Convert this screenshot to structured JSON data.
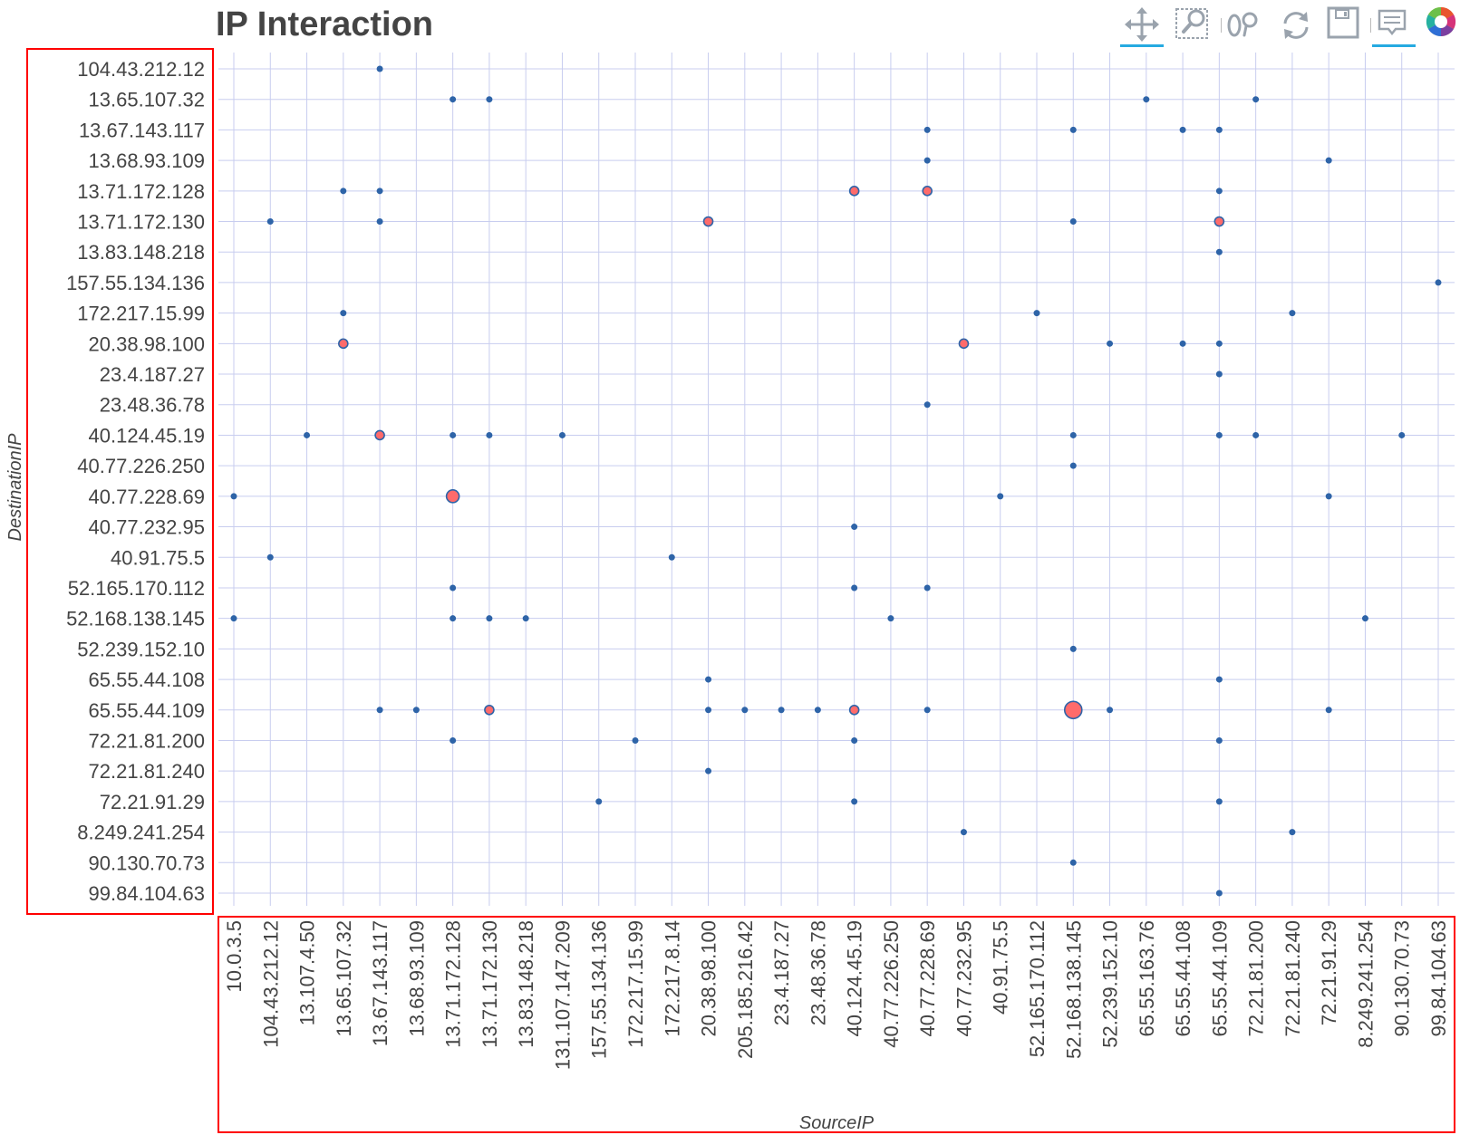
{
  "title": "IP Interaction",
  "toolbar": {
    "tools": [
      {
        "name": "pan-tool",
        "icon": "move-arrows-icon",
        "active": true
      },
      {
        "name": "box-zoom-tool",
        "icon": "box-zoom-icon",
        "active": false
      },
      {
        "name": "wheel-zoom-tool",
        "icon": "wheel-zoom-icon",
        "active": false
      },
      {
        "name": "reset-tool",
        "icon": "reset-icon",
        "active": false
      },
      {
        "name": "save-tool",
        "icon": "save-icon",
        "active": false
      },
      {
        "name": "hover-tool",
        "icon": "hover-tooltip-icon",
        "active": true
      },
      {
        "name": "bokeh-logo",
        "icon": "bokeh-logo-icon",
        "active": false
      }
    ]
  },
  "colors": {
    "grid": "#c8cdef",
    "marker_fill": "#ff6b6b",
    "marker_stroke": "#2e64a8",
    "highlight_box": "#ff0000",
    "text": "#444444",
    "tool_active": "#26aae1"
  },
  "chart_data": {
    "type": "scatter",
    "title": "IP Interaction",
    "xlabel": "SourceIP",
    "ylabel": "DestinationIP",
    "grid": true,
    "x_categories": [
      "10.0.3.5",
      "104.43.212.12",
      "13.107.4.50",
      "13.65.107.32",
      "13.67.143.117",
      "13.68.93.109",
      "13.71.172.128",
      "13.71.172.130",
      "13.83.148.218",
      "131.107.147.209",
      "157.55.134.136",
      "172.217.15.99",
      "172.217.8.14",
      "20.38.98.100",
      "205.185.216.42",
      "23.4.187.27",
      "23.48.36.78",
      "40.124.45.19",
      "40.77.226.250",
      "40.77.228.69",
      "40.77.232.95",
      "40.91.75.5",
      "52.165.170.112",
      "52.168.138.145",
      "52.239.152.10",
      "65.55.163.76",
      "65.55.44.108",
      "65.55.44.109",
      "72.21.81.200",
      "72.21.81.240",
      "72.21.91.29",
      "8.249.241.254",
      "90.130.70.73",
      "99.84.104.63"
    ],
    "y_categories": [
      "104.43.212.12",
      "13.65.107.32",
      "13.67.143.117",
      "13.68.93.109",
      "13.71.172.128",
      "13.71.172.130",
      "13.83.148.218",
      "157.55.134.136",
      "172.217.15.99",
      "20.38.98.100",
      "23.4.187.27",
      "23.48.36.78",
      "40.124.45.19",
      "40.77.226.250",
      "40.77.228.69",
      "40.77.232.95",
      "40.91.75.5",
      "52.165.170.112",
      "52.168.138.145",
      "52.239.152.10",
      "65.55.44.108",
      "65.55.44.109",
      "72.21.81.200",
      "72.21.81.240",
      "72.21.91.29",
      "8.249.241.254",
      "90.130.70.73",
      "99.84.104.63"
    ],
    "points": [
      {
        "x": "13.67.143.117",
        "y": "104.43.212.12",
        "size": 1
      },
      {
        "x": "13.71.172.128",
        "y": "13.65.107.32",
        "size": 1
      },
      {
        "x": "13.71.172.130",
        "y": "13.65.107.32",
        "size": 1
      },
      {
        "x": "65.55.163.76",
        "y": "13.65.107.32",
        "size": 1
      },
      {
        "x": "72.21.81.200",
        "y": "13.65.107.32",
        "size": 1
      },
      {
        "x": "40.77.228.69",
        "y": "13.67.143.117",
        "size": 1
      },
      {
        "x": "52.168.138.145",
        "y": "13.67.143.117",
        "size": 1
      },
      {
        "x": "65.55.44.108",
        "y": "13.67.143.117",
        "size": 1
      },
      {
        "x": "65.55.44.109",
        "y": "13.67.143.117",
        "size": 1
      },
      {
        "x": "40.77.228.69",
        "y": "13.68.93.109",
        "size": 1
      },
      {
        "x": "72.21.91.29",
        "y": "13.68.93.109",
        "size": 1
      },
      {
        "x": "13.65.107.32",
        "y": "13.71.172.128",
        "size": 1
      },
      {
        "x": "13.67.143.117",
        "y": "13.71.172.128",
        "size": 1
      },
      {
        "x": "40.124.45.19",
        "y": "13.71.172.128",
        "size": 2
      },
      {
        "x": "40.77.228.69",
        "y": "13.71.172.128",
        "size": 2
      },
      {
        "x": "65.55.44.109",
        "y": "13.71.172.128",
        "size": 1
      },
      {
        "x": "104.43.212.12",
        "y": "13.71.172.130",
        "size": 1
      },
      {
        "x": "13.67.143.117",
        "y": "13.71.172.130",
        "size": 1
      },
      {
        "x": "20.38.98.100",
        "y": "13.71.172.130",
        "size": 2
      },
      {
        "x": "52.168.138.145",
        "y": "13.71.172.130",
        "size": 1
      },
      {
        "x": "65.55.44.109",
        "y": "13.71.172.130",
        "size": 2
      },
      {
        "x": "65.55.44.109",
        "y": "13.83.148.218",
        "size": 1
      },
      {
        "x": "99.84.104.63",
        "y": "157.55.134.136",
        "size": 1
      },
      {
        "x": "13.65.107.32",
        "y": "172.217.15.99",
        "size": 1
      },
      {
        "x": "52.165.170.112",
        "y": "172.217.15.99",
        "size": 1
      },
      {
        "x": "72.21.81.240",
        "y": "172.217.15.99",
        "size": 1
      },
      {
        "x": "13.65.107.32",
        "y": "20.38.98.100",
        "size": 2
      },
      {
        "x": "40.77.232.95",
        "y": "20.38.98.100",
        "size": 2
      },
      {
        "x": "52.239.152.10",
        "y": "20.38.98.100",
        "size": 1
      },
      {
        "x": "65.55.44.108",
        "y": "20.38.98.100",
        "size": 1
      },
      {
        "x": "65.55.44.109",
        "y": "20.38.98.100",
        "size": 1
      },
      {
        "x": "65.55.44.109",
        "y": "23.4.187.27",
        "size": 1
      },
      {
        "x": "40.77.228.69",
        "y": "23.48.36.78",
        "size": 1
      },
      {
        "x": "13.107.4.50",
        "y": "40.124.45.19",
        "size": 1
      },
      {
        "x": "13.67.143.117",
        "y": "40.124.45.19",
        "size": 2
      },
      {
        "x": "13.71.172.128",
        "y": "40.124.45.19",
        "size": 1
      },
      {
        "x": "13.71.172.130",
        "y": "40.124.45.19",
        "size": 1
      },
      {
        "x": "131.107.147.209",
        "y": "40.124.45.19",
        "size": 1
      },
      {
        "x": "52.168.138.145",
        "y": "40.124.45.19",
        "size": 1
      },
      {
        "x": "65.55.44.109",
        "y": "40.124.45.19",
        "size": 1
      },
      {
        "x": "72.21.81.200",
        "y": "40.124.45.19",
        "size": 1
      },
      {
        "x": "90.130.70.73",
        "y": "40.124.45.19",
        "size": 1
      },
      {
        "x": "52.168.138.145",
        "y": "40.77.226.250",
        "size": 1
      },
      {
        "x": "10.0.3.5",
        "y": "40.77.228.69",
        "size": 1
      },
      {
        "x": "13.71.172.128",
        "y": "40.77.228.69",
        "size": 3
      },
      {
        "x": "40.91.75.5",
        "y": "40.77.228.69",
        "size": 1
      },
      {
        "x": "72.21.91.29",
        "y": "40.77.228.69",
        "size": 1
      },
      {
        "x": "40.124.45.19",
        "y": "40.77.232.95",
        "size": 1
      },
      {
        "x": "104.43.212.12",
        "y": "40.91.75.5",
        "size": 1
      },
      {
        "x": "172.217.8.14",
        "y": "40.91.75.5",
        "size": 1
      },
      {
        "x": "13.71.172.128",
        "y": "52.165.170.112",
        "size": 1
      },
      {
        "x": "40.124.45.19",
        "y": "52.165.170.112",
        "size": 1
      },
      {
        "x": "40.77.228.69",
        "y": "52.165.170.112",
        "size": 1
      },
      {
        "x": "10.0.3.5",
        "y": "52.168.138.145",
        "size": 1
      },
      {
        "x": "13.71.172.128",
        "y": "52.168.138.145",
        "size": 1
      },
      {
        "x": "13.71.172.130",
        "y": "52.168.138.145",
        "size": 1
      },
      {
        "x": "13.83.148.218",
        "y": "52.168.138.145",
        "size": 1
      },
      {
        "x": "40.77.226.250",
        "y": "52.168.138.145",
        "size": 1
      },
      {
        "x": "8.249.241.254",
        "y": "52.168.138.145",
        "size": 1
      },
      {
        "x": "52.168.138.145",
        "y": "52.239.152.10",
        "size": 1
      },
      {
        "x": "20.38.98.100",
        "y": "65.55.44.108",
        "size": 1
      },
      {
        "x": "65.55.44.109",
        "y": "65.55.44.108",
        "size": 1
      },
      {
        "x": "13.67.143.117",
        "y": "65.55.44.109",
        "size": 1
      },
      {
        "x": "13.68.93.109",
        "y": "65.55.44.109",
        "size": 1
      },
      {
        "x": "13.71.172.130",
        "y": "65.55.44.109",
        "size": 2
      },
      {
        "x": "20.38.98.100",
        "y": "65.55.44.109",
        "size": 1
      },
      {
        "x": "205.185.216.42",
        "y": "65.55.44.109",
        "size": 1
      },
      {
        "x": "23.4.187.27",
        "y": "65.55.44.109",
        "size": 1
      },
      {
        "x": "23.48.36.78",
        "y": "65.55.44.109",
        "size": 1
      },
      {
        "x": "40.124.45.19",
        "y": "65.55.44.109",
        "size": 2
      },
      {
        "x": "40.77.228.69",
        "y": "65.55.44.109",
        "size": 1
      },
      {
        "x": "52.168.138.145",
        "y": "65.55.44.109",
        "size": 4
      },
      {
        "x": "52.239.152.10",
        "y": "65.55.44.109",
        "size": 1
      },
      {
        "x": "72.21.91.29",
        "y": "65.55.44.109",
        "size": 1
      },
      {
        "x": "13.71.172.128",
        "y": "72.21.81.200",
        "size": 1
      },
      {
        "x": "172.217.15.99",
        "y": "72.21.81.200",
        "size": 1
      },
      {
        "x": "40.124.45.19",
        "y": "72.21.81.200",
        "size": 1
      },
      {
        "x": "65.55.44.109",
        "y": "72.21.81.200",
        "size": 1
      },
      {
        "x": "20.38.98.100",
        "y": "72.21.81.240",
        "size": 1
      },
      {
        "x": "157.55.134.136",
        "y": "72.21.91.29",
        "size": 1
      },
      {
        "x": "40.124.45.19",
        "y": "72.21.91.29",
        "size": 1
      },
      {
        "x": "65.55.44.109",
        "y": "72.21.91.29",
        "size": 1
      },
      {
        "x": "40.77.232.95",
        "y": "8.249.241.254",
        "size": 1
      },
      {
        "x": "72.21.81.240",
        "y": "8.249.241.254",
        "size": 1
      },
      {
        "x": "52.168.138.145",
        "y": "90.130.70.73",
        "size": 1
      },
      {
        "x": "65.55.44.109",
        "y": "99.84.104.63",
        "size": 1
      }
    ]
  }
}
